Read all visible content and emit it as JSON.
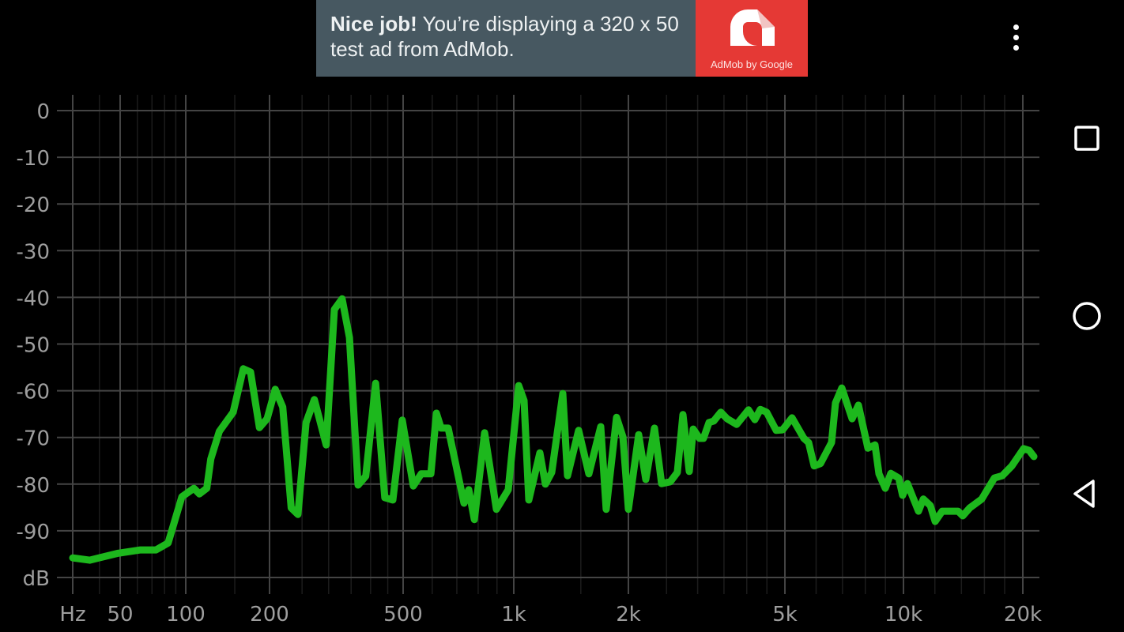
{
  "ad": {
    "headline_bold": "Nice job!",
    "headline_rest": " You’re displaying a 320 x 50 test ad from AdMob.",
    "logo_caption": "AdMob by Google",
    "bg_color": "#475861",
    "logo_color": "#e53935"
  },
  "menu": {
    "icon": "more-vert-icon"
  },
  "navbar": {
    "icons": [
      "recents-square-icon",
      "home-circle-icon",
      "back-triangle-icon"
    ]
  },
  "chart_data": {
    "type": "line",
    "x_scale": "log",
    "x_unit_label": "Hz",
    "y_unit_label": "dB",
    "x_ticks": [
      {
        "value": 50,
        "label": "50"
      },
      {
        "value": 100,
        "label": "100"
      },
      {
        "value": 200,
        "label": "200"
      },
      {
        "value": 500,
        "label": "500"
      },
      {
        "value": 1000,
        "label": "1k"
      },
      {
        "value": 2000,
        "label": "2k"
      },
      {
        "value": 5000,
        "label": "5k"
      },
      {
        "value": 10000,
        "label": "10k"
      },
      {
        "value": 20000,
        "label": "20k"
      }
    ],
    "y_ticks": [
      {
        "value": 0,
        "label": "0"
      },
      {
        "value": -10,
        "label": "-10"
      },
      {
        "value": -20,
        "label": "-20"
      },
      {
        "value": -30,
        "label": "-30"
      },
      {
        "value": -40,
        "label": "-40"
      },
      {
        "value": -50,
        "label": "-50"
      },
      {
        "value": -60,
        "label": "-60"
      },
      {
        "value": -70,
        "label": "-70"
      },
      {
        "value": -80,
        "label": "-80"
      },
      {
        "value": -90,
        "label": "-90"
      }
    ],
    "ylim": [
      -100,
      0
    ],
    "grid": true,
    "line_color": "#1db81d",
    "series": [
      {
        "x": [
          30,
          36,
          49,
          62,
          73,
          83,
          96,
          107,
          112,
          119,
          123,
          132,
          148,
          161,
          171,
          184,
          196,
          208,
          219,
          232,
          243,
          257,
          272,
          295,
          312,
          329,
          346,
          367,
          387,
          414,
          441,
          466,
          497,
          533,
          560,
          595,
          616,
          634,
          663,
          732,
          754,
          781,
          833,
          897,
          966,
          1030,
          1064,
          1095,
          1171,
          1211,
          1258,
          1345,
          1384,
          1480,
          1575,
          1692,
          1749,
          1862,
          1935,
          2000,
          2124,
          2214,
          2330,
          2429,
          2556,
          2664,
          2752,
          2856,
          2923,
          3033,
          3104,
          3206,
          3296,
          3436,
          3566,
          3770,
          4040,
          4193,
          4330,
          4494,
          4751,
          4930,
          5212,
          5586,
          5743,
          5931,
          6156,
          6567,
          6721,
          6973,
          7405,
          7684,
          8123,
          8467,
          8666,
          8992,
          9287,
          9727,
          9950,
          10230,
          10910,
          11220,
          11690,
          12020,
          12520,
          13730,
          14110,
          14700,
          15750,
          16950,
          17750,
          18760,
          20090,
          20750,
          21330
        ],
        "y": [
          -95.8,
          -96.3,
          -94.8,
          -94.1,
          -94.1,
          -92.6,
          -82.7,
          -80.9,
          -82.1,
          -80.9,
          -74.6,
          -68.7,
          -64.6,
          -55.3,
          -56.0,
          -67.9,
          -66.0,
          -59.7,
          -63.5,
          -85.1,
          -86.5,
          -66.8,
          -61.9,
          -71.6,
          -42.6,
          -40.3,
          -48.6,
          -80.2,
          -78.3,
          -58.4,
          -82.9,
          -83.4,
          -66.3,
          -80.4,
          -77.8,
          -77.8,
          -64.8,
          -68.0,
          -68.0,
          -84.1,
          -81.2,
          -87.6,
          -69.0,
          -85.4,
          -81.2,
          -58.9,
          -62.1,
          -83.4,
          -73.3,
          -80.0,
          -77.5,
          -60.6,
          -78.2,
          -68.5,
          -77.8,
          -67.7,
          -85.4,
          -65.7,
          -69.9,
          -85.4,
          -69.4,
          -79.0,
          -68.0,
          -79.9,
          -79.5,
          -77.5,
          -65.1,
          -77.3,
          -68.2,
          -70.2,
          -70.2,
          -66.8,
          -66.5,
          -64.6,
          -66.0,
          -67.2,
          -64.1,
          -66.2,
          -64.0,
          -64.6,
          -68.5,
          -68.4,
          -65.8,
          -70.2,
          -71.1,
          -76.1,
          -75.6,
          -71.1,
          -62.6,
          -59.4,
          -66.0,
          -63.1,
          -72.3,
          -71.6,
          -77.8,
          -80.9,
          -77.7,
          -78.7,
          -82.4,
          -79.9,
          -85.8,
          -83.2,
          -84.6,
          -88.0,
          -85.8,
          -85.8,
          -86.8,
          -85.1,
          -83.2,
          -78.7,
          -78.2,
          -76.1,
          -72.4,
          -72.8,
          -74.1
        ]
      }
    ]
  }
}
